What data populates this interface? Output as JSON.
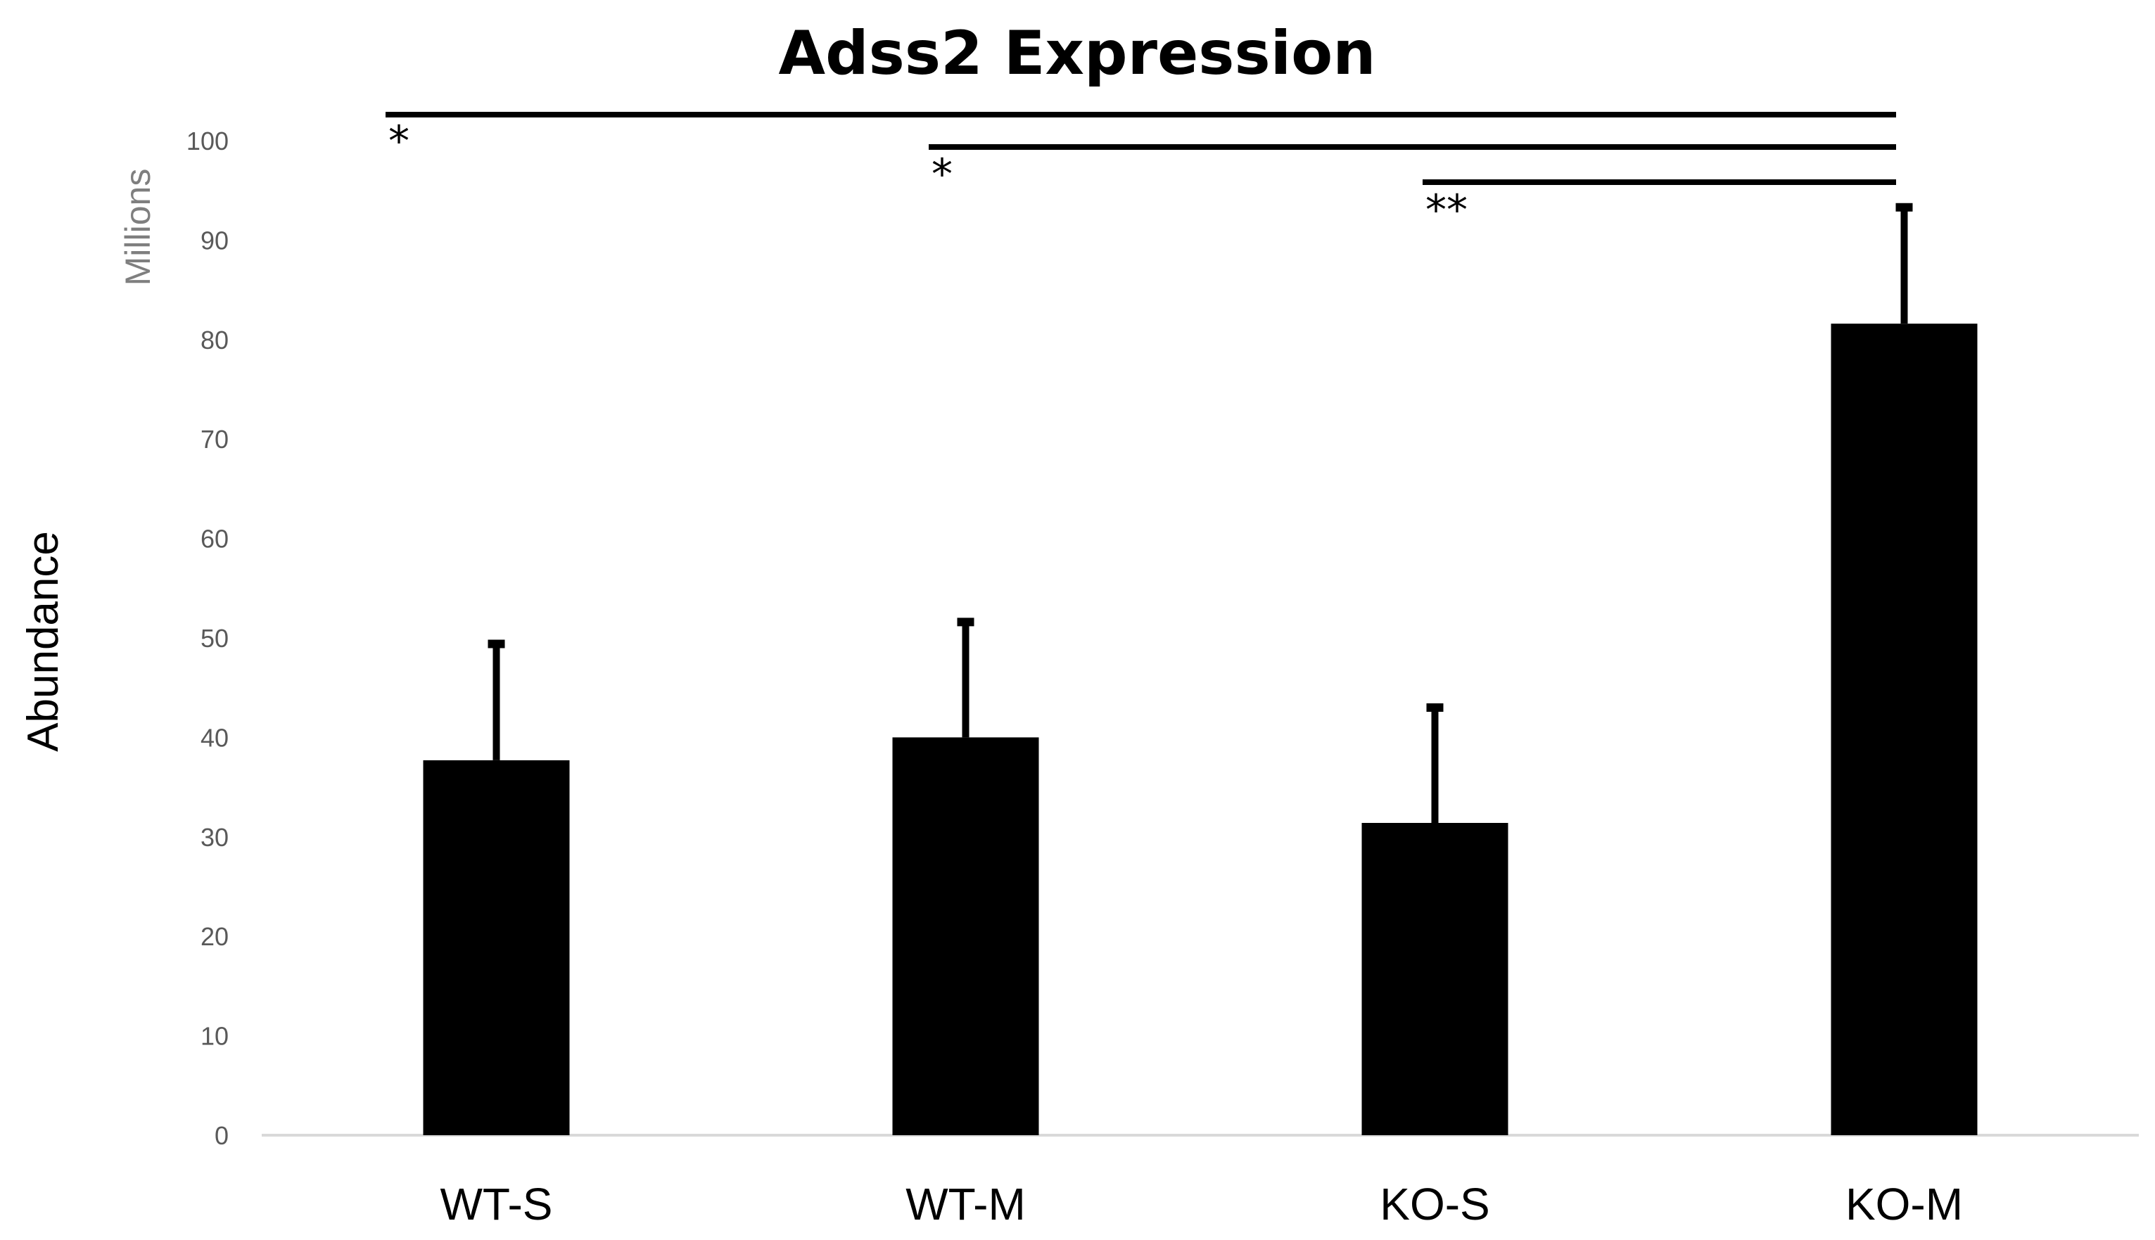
{
  "chart_data": {
    "type": "bar",
    "title": "Adss2 Expression",
    "xlabel": "",
    "ylabel": "Abundance",
    "y_unit_label": "Millions",
    "ylim": [
      0,
      100
    ],
    "yticks": [
      "0",
      "10",
      "20",
      "30",
      "40",
      "50",
      "60",
      "70",
      "80",
      "90",
      "100"
    ],
    "grid": false,
    "categories": [
      "WT-S",
      "WT-M",
      "KO-S",
      "KO-M"
    ],
    "series": [
      {
        "name": "Abundance",
        "values": [
          37.7,
          40.0,
          31.4,
          81.6
        ],
        "error_upper": [
          11.7,
          11.6,
          11.6,
          11.7
        ],
        "color": "#000000"
      }
    ],
    "significance": [
      {
        "from": "WT-S",
        "to": "KO-M",
        "label": "*"
      },
      {
        "from": "WT-M",
        "to": "KO-M",
        "label": "*"
      },
      {
        "from": "KO-S",
        "to": "KO-M",
        "label": "**"
      }
    ],
    "colors": {
      "bar": "#000000",
      "axis": "#d9d9d9",
      "tick_label": "#595959",
      "unit_label": "#7f7f7f",
      "text": "#000000"
    }
  }
}
